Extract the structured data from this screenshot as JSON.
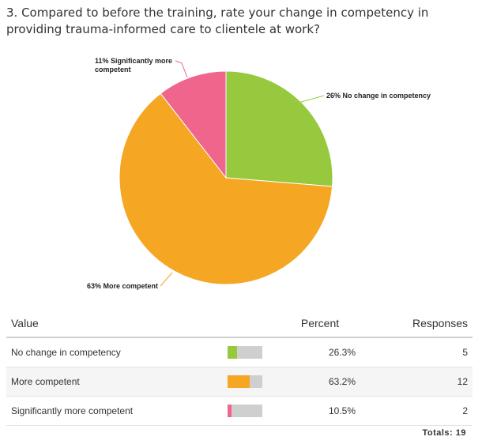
{
  "question": {
    "title": "3. Compared to before the training, rate your change in competency in providing trauma-informed care to clientele at work?"
  },
  "chart_data": {
    "type": "pie",
    "title": "",
    "slices": [
      {
        "label": "No change in competency",
        "percent_label": "26%",
        "value": 26.3,
        "color": "#96c93d"
      },
      {
        "label": "More competent",
        "percent_label": "63%",
        "value": 63.2,
        "color": "#f5a623"
      },
      {
        "label": "Significantly more competent",
        "percent_label": "11%",
        "value": 10.5,
        "color": "#f0658c"
      }
    ],
    "slice_texts": [
      "26% No change in competency",
      "63% More competent",
      "11% Significantly more competent"
    ]
  },
  "table": {
    "headers": {
      "value": "Value",
      "percent": "Percent",
      "responses": "Responses"
    },
    "rows": [
      {
        "value": "No change in competency",
        "percent": "26.3%",
        "responses": "5",
        "fraction": 0.263,
        "color": "#96c93d"
      },
      {
        "value": "More competent",
        "percent": "63.2%",
        "responses": "12",
        "fraction": 0.632,
        "color": "#f5a623"
      },
      {
        "value": "Significantly more competent",
        "percent": "10.5%",
        "responses": "2",
        "fraction": 0.105,
        "color": "#f0658c"
      }
    ],
    "totals_label": "Totals: 19"
  }
}
